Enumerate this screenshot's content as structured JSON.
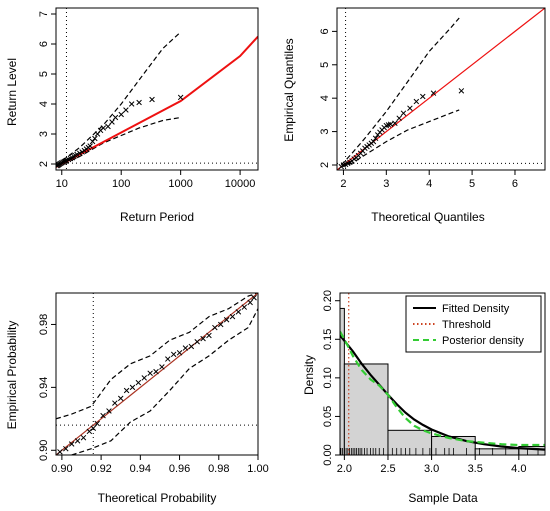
{
  "chart_data": [
    {
      "id": "return-level",
      "type": "scatter",
      "xlabel": "Return Period",
      "ylabel": "Return Level",
      "xscale": "log",
      "xlim": [
        8,
        20000
      ],
      "ylim": [
        1.8,
        7.2
      ],
      "xticks": [
        10,
        100,
        1000,
        10000
      ],
      "xtick_labels": [
        "10",
        "100",
        "1000",
        "10000"
      ],
      "yticks": [
        2,
        3,
        4,
        5,
        6,
        7
      ],
      "ytick_labels": [
        "2",
        "3",
        "4",
        "5",
        "6",
        "7"
      ],
      "vline": 12,
      "hline": 2.03,
      "fit_line": {
        "color": "#ee1111",
        "x": [
          8,
          10,
          100,
          1000,
          10000,
          20000
        ],
        "y": [
          1.9,
          2.0,
          3.05,
          4.1,
          5.6,
          6.25
        ]
      },
      "upper_band": {
        "x": [
          8,
          10,
          20,
          50,
          100,
          200,
          500,
          1000
        ],
        "y": [
          1.95,
          2.1,
          2.55,
          3.3,
          4.0,
          4.8,
          5.85,
          6.4
        ]
      },
      "lower_band": {
        "x": [
          8,
          10,
          20,
          50,
          100,
          200,
          500,
          1000
        ],
        "y": [
          1.9,
          1.98,
          2.25,
          2.7,
          2.95,
          3.2,
          3.45,
          3.55
        ]
      },
      "points": {
        "marker": "x",
        "x": [
          8.3,
          8.6,
          8.9,
          9.2,
          9.6,
          10,
          10.5,
          11,
          11.5,
          12,
          13,
          14,
          15,
          16,
          17,
          18,
          20,
          22,
          24,
          26,
          28,
          30,
          33,
          36,
          40,
          45,
          50,
          60,
          70,
          80,
          100,
          120,
          150,
          200,
          330,
          1000
        ],
        "y": [
          1.94,
          1.96,
          1.98,
          2.0,
          2.02,
          2.04,
          2.06,
          2.08,
          2.1,
          2.12,
          2.15,
          2.18,
          2.21,
          2.25,
          2.28,
          2.32,
          2.36,
          2.4,
          2.45,
          2.5,
          2.55,
          2.6,
          2.75,
          2.85,
          3.0,
          3.12,
          3.2,
          3.25,
          3.4,
          3.55,
          3.65,
          3.8,
          4.0,
          4.05,
          4.15,
          4.22
        ]
      }
    },
    {
      "id": "qq-plot",
      "type": "scatter",
      "xlabel": "Theoretical Quantiles",
      "ylabel": "Empirical Quantiles",
      "xlim": [
        1.85,
        6.7
      ],
      "ylim": [
        1.85,
        6.7
      ],
      "xticks": [
        2,
        3,
        4,
        5,
        6
      ],
      "xtick_labels": [
        "2",
        "3",
        "4",
        "5",
        "6"
      ],
      "yticks": [
        2,
        3,
        4,
        5,
        6
      ],
      "ytick_labels": [
        "2",
        "3",
        "4",
        "5",
        "6"
      ],
      "vline": 2.05,
      "hline": 2.05,
      "fit_line": {
        "color": "#ee1111",
        "x": [
          1.85,
          6.7
        ],
        "y": [
          1.85,
          6.7
        ]
      },
      "upper_band": {
        "x": [
          1.95,
          2.2,
          2.5,
          3.0,
          3.5,
          4.0,
          4.5,
          4.7
        ],
        "y": [
          2.0,
          2.35,
          2.8,
          3.6,
          4.5,
          5.4,
          6.1,
          6.4
        ]
      },
      "lower_band": {
        "x": [
          1.95,
          2.2,
          2.5,
          3.0,
          3.5,
          4.0,
          4.5,
          4.7
        ],
        "y": [
          1.95,
          2.05,
          2.3,
          2.7,
          3.05,
          3.3,
          3.55,
          3.65
        ]
      },
      "points": {
        "marker": "x",
        "x": [
          1.95,
          2.0,
          2.05,
          2.1,
          2.15,
          2.2,
          2.25,
          2.3,
          2.35,
          2.4,
          2.45,
          2.5,
          2.55,
          2.6,
          2.65,
          2.7,
          2.75,
          2.8,
          2.85,
          2.9,
          2.95,
          3.0,
          3.05,
          3.1,
          3.2,
          3.3,
          3.4,
          3.55,
          3.7,
          3.85,
          4.1,
          4.75
        ],
        "y": [
          1.95,
          2.0,
          2.02,
          2.05,
          2.08,
          2.12,
          2.18,
          2.22,
          2.28,
          2.35,
          2.42,
          2.5,
          2.55,
          2.6,
          2.65,
          2.7,
          2.8,
          2.9,
          2.98,
          3.05,
          3.12,
          3.18,
          3.2,
          3.22,
          3.25,
          3.4,
          3.55,
          3.7,
          3.9,
          4.05,
          4.15,
          4.22
        ]
      }
    },
    {
      "id": "pp-plot",
      "type": "scatter",
      "xlabel": "Theoretical Probability",
      "ylabel": "Empirical Probability",
      "xlim": [
        0.897,
        1.0
      ],
      "ylim": [
        0.897,
        1.0
      ],
      "xticks": [
        0.9,
        0.92,
        0.94,
        0.96,
        0.98,
        1.0
      ],
      "xtick_labels": [
        "0.90",
        "0.92",
        "0.94",
        "0.96",
        "0.98",
        "1.00"
      ],
      "yticks": [
        0.9,
        0.94,
        0.98
      ],
      "ytick_labels": [
        "0.90",
        "0.94",
        "0.98"
      ],
      "vline": 0.916,
      "hline": 0.916,
      "fit_line": {
        "color": "#aa3322",
        "x": [
          0.897,
          1.0
        ],
        "y": [
          0.897,
          1.0
        ]
      },
      "upper_band": {
        "x": [
          0.897,
          0.905,
          0.915,
          0.925,
          0.935,
          0.945,
          0.955,
          0.965,
          0.975,
          0.985,
          0.995,
          1.0
        ],
        "y": [
          0.92,
          0.923,
          0.928,
          0.945,
          0.955,
          0.96,
          0.97,
          0.975,
          0.985,
          0.99,
          0.998,
          1.0
        ]
      },
      "lower_band": {
        "x": [
          0.905,
          0.915,
          0.925,
          0.935,
          0.945,
          0.955,
          0.965,
          0.975,
          0.985,
          0.995,
          1.0
        ],
        "y": [
          0.897,
          0.901,
          0.906,
          0.918,
          0.925,
          0.938,
          0.952,
          0.96,
          0.97,
          0.978,
          0.99
        ]
      },
      "points": {
        "marker": "x",
        "x": [
          0.899,
          0.902,
          0.905,
          0.908,
          0.911,
          0.914,
          0.916,
          0.918,
          0.921,
          0.924,
          0.927,
          0.93,
          0.933,
          0.936,
          0.939,
          0.942,
          0.945,
          0.948,
          0.951,
          0.954,
          0.957,
          0.96,
          0.963,
          0.966,
          0.969,
          0.972,
          0.975,
          0.978,
          0.981,
          0.984,
          0.987,
          0.99,
          0.993,
          0.996,
          0.998
        ],
        "y": [
          0.899,
          0.901,
          0.904,
          0.906,
          0.908,
          0.912,
          0.914,
          0.917,
          0.922,
          0.925,
          0.93,
          0.933,
          0.938,
          0.94,
          0.943,
          0.946,
          0.949,
          0.95,
          0.953,
          0.958,
          0.961,
          0.962,
          0.965,
          0.966,
          0.969,
          0.971,
          0.973,
          0.978,
          0.98,
          0.983,
          0.985,
          0.988,
          0.991,
          0.994,
          0.997
        ]
      }
    },
    {
      "id": "density",
      "type": "bar",
      "xlabel": "Sample Data",
      "ylabel": "Density",
      "xlim": [
        1.95,
        4.3
      ],
      "ylim": [
        0,
        0.21
      ],
      "xticks": [
        2.0,
        2.5,
        3.0,
        3.5,
        4.0
      ],
      "xtick_labels": [
        "2.0",
        "2.5",
        "3.0",
        "3.5",
        "4.0"
      ],
      "yticks": [
        0.0,
        0.05,
        0.1,
        0.15,
        0.2
      ],
      "ytick_labels": [
        "0.00",
        "0.05",
        "0.10",
        "0.15",
        "0.20"
      ],
      "bins": [
        {
          "x0": 1.95,
          "x1": 2.0,
          "value": 0.19
        },
        {
          "x0": 2.0,
          "x1": 2.5,
          "value": 0.118
        },
        {
          "x0": 2.5,
          "x1": 3.0,
          "value": 0.032
        },
        {
          "x0": 3.0,
          "x1": 3.5,
          "value": 0.024
        },
        {
          "x0": 3.5,
          "x1": 4.0,
          "value": 0.008
        },
        {
          "x0": 4.0,
          "x1": 4.3,
          "value": 0.011
        }
      ],
      "threshold": 2.05,
      "fitted_density": {
        "x": [
          1.95,
          2.0,
          2.1,
          2.2,
          2.3,
          2.4,
          2.5,
          2.6,
          2.7,
          2.8,
          2.9,
          3.0,
          3.2,
          3.4,
          3.6,
          3.8,
          4.0,
          4.3
        ],
        "y": [
          0.155,
          0.148,
          0.134,
          0.118,
          0.104,
          0.091,
          0.078,
          0.066,
          0.055,
          0.046,
          0.039,
          0.033,
          0.024,
          0.018,
          0.014,
          0.011,
          0.009,
          0.007
        ]
      },
      "posterior_density": {
        "x": [
          1.95,
          2.0,
          2.1,
          2.2,
          2.3,
          2.4,
          2.5,
          2.6,
          2.7,
          2.8,
          2.9,
          3.0,
          3.2,
          3.4,
          3.6,
          3.8,
          4.0,
          4.3
        ],
        "y": [
          0.16,
          0.15,
          0.128,
          0.11,
          0.098,
          0.09,
          0.078,
          0.062,
          0.048,
          0.038,
          0.032,
          0.028,
          0.022,
          0.018,
          0.016,
          0.014,
          0.013,
          0.013
        ]
      },
      "rug": [
        1.96,
        1.98,
        2.0,
        2.02,
        2.04,
        2.06,
        2.08,
        2.1,
        2.12,
        2.14,
        2.16,
        2.18,
        2.2,
        2.23,
        2.26,
        2.3,
        2.33,
        2.36,
        2.4,
        2.45,
        2.5,
        2.55,
        2.6,
        2.65,
        2.7,
        2.75,
        2.82,
        2.9,
        2.98,
        3.05,
        3.15,
        3.2,
        3.25,
        3.4,
        3.55,
        3.7,
        3.85,
        4.0,
        4.1,
        4.22
      ],
      "legend": {
        "position": "top-right",
        "entries": [
          {
            "label": "Fitted Density",
            "color": "#000000",
            "style": "solid"
          },
          {
            "label": "Threshold",
            "color": "#cc4422",
            "style": "dotted"
          },
          {
            "label": "Posterior density",
            "color": "#33cc33",
            "style": "dashed"
          }
        ]
      }
    }
  ]
}
